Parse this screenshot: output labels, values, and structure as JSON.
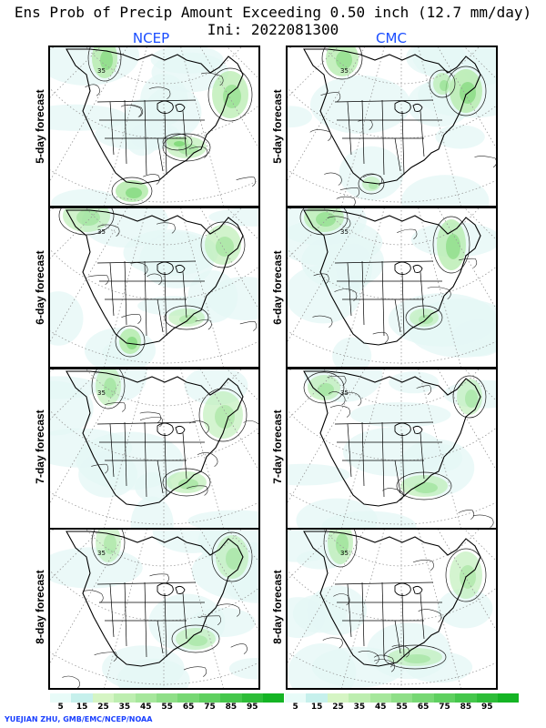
{
  "title_line1": "Ens Prob of Precip Amount Exceeding 0.50 inch (12.7 mm/day)",
  "title_line2": "Ini: 2022081300",
  "columns": [
    {
      "label": "NCEP"
    },
    {
      "label": "CMC"
    }
  ],
  "rows": [
    {
      "label": "5-day forecast"
    },
    {
      "label": "6-day forecast"
    },
    {
      "label": "7-day forecast"
    },
    {
      "label": "8-day forecast"
    }
  ],
  "contour_label": "35",
  "colorbar": {
    "labels": [
      "5",
      "15",
      "25",
      "35",
      "45",
      "55",
      "65",
      "75",
      "85",
      "95"
    ],
    "colors": [
      "#e8fbf8",
      "#c6f0ec",
      "#d5f5c4",
      "#bdeeb0",
      "#a6e79c",
      "#8fdf88",
      "#77d874",
      "#5fd060",
      "#45c74c",
      "#2dbd38",
      "#14b424"
    ]
  },
  "credit": "YUEJIAN ZHU, GMB/EMC/NCEP/NOAA"
}
